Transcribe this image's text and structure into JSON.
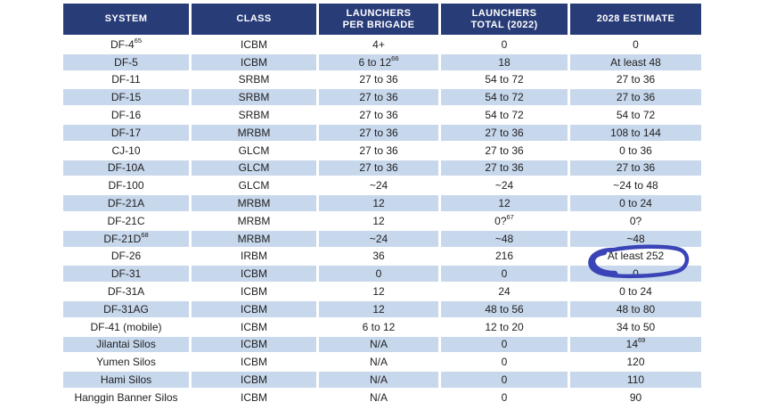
{
  "page": {
    "background": "#ffffff"
  },
  "table": {
    "columns": [
      {
        "label": "SYSTEM"
      },
      {
        "label": "CLASS"
      },
      {
        "label": "LAUNCHERS\nPER BRIGADE"
      },
      {
        "label": "LAUNCHERS\nTOTAL (2022)"
      },
      {
        "label": "2028 ESTIMATE"
      }
    ],
    "rows": [
      [
        {
          "t": "DF-4",
          "sup": "65"
        },
        "ICBM",
        "4+",
        "0",
        "0"
      ],
      [
        "DF-5",
        "ICBM",
        {
          "t": "6 to 12",
          "sup": "66"
        },
        "18",
        "At least 48"
      ],
      [
        "DF-11",
        "SRBM",
        "27 to 36",
        "54 to 72",
        "27 to 36"
      ],
      [
        "DF-15",
        "SRBM",
        "27 to 36",
        "54 to 72",
        "27 to 36"
      ],
      [
        "DF-16",
        "SRBM",
        "27 to 36",
        "54 to 72",
        "54 to 72"
      ],
      [
        "DF-17",
        "MRBM",
        "27 to 36",
        "27 to 36",
        "108 to 144"
      ],
      [
        "CJ-10",
        "GLCM",
        "27 to 36",
        "27 to 36",
        "0 to 36"
      ],
      [
        "DF-10A",
        "GLCM",
        "27 to 36",
        "27 to 36",
        "27 to 36"
      ],
      [
        "DF-100",
        "GLCM",
        "~24",
        "~24",
        "~24 to 48"
      ],
      [
        "DF-21A",
        "MRBM",
        "12",
        "12",
        "0 to 24"
      ],
      [
        "DF-21C",
        "MRBM",
        "12",
        {
          "t": "0?",
          "sup": "67"
        },
        "0?"
      ],
      [
        {
          "t": "DF-21D",
          "sup": "68"
        },
        "MRBM",
        "~24",
        "~48",
        "~48"
      ],
      [
        "DF-26",
        "IRBM",
        "36",
        "216",
        "At least 252"
      ],
      [
        "DF-31",
        "ICBM",
        "0",
        "0",
        "0"
      ],
      [
        "DF-31A",
        "ICBM",
        "12",
        "24",
        "0 to 24"
      ],
      [
        "DF-31AG",
        "ICBM",
        "12",
        "48 to 56",
        "48 to 80"
      ],
      [
        "DF-41 (mobile)",
        "ICBM",
        "6 to 12",
        "12 to 20",
        "34 to 50"
      ],
      [
        "Jilantai Silos",
        "ICBM",
        "N/A",
        "0",
        {
          "t": "14",
          "sup": "69"
        }
      ],
      [
        "Yumen Silos",
        "ICBM",
        "N/A",
        "0",
        "120"
      ],
      [
        "Hami Silos",
        "ICBM",
        "N/A",
        "0",
        "110"
      ],
      [
        "Hanggin Banner Silos",
        "ICBM",
        "N/A",
        "0",
        "90"
      ]
    ],
    "colors": {
      "header_bg": "#283c78",
      "header_text": "#ffffff",
      "row_bg": "#ffffff",
      "row_alt_bg": "#c7d7ec",
      "body_text": "#212121"
    }
  },
  "annotation": {
    "type": "hand-drawn-circle",
    "color": "#3a44b6",
    "circled_text": "At least 252",
    "row_system": "DF-26",
    "column": "2028 ESTIMATE"
  }
}
